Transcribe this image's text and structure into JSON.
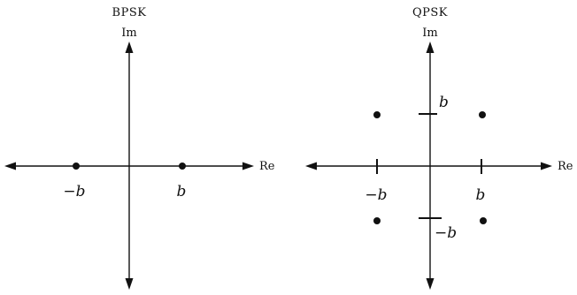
{
  "bpsk": {
    "title": "BPSK",
    "im_label": "Im",
    "re_label": "Re",
    "points": [
      {
        "re": -1,
        "im": 0
      },
      {
        "re": 1,
        "im": 0
      }
    ],
    "labels": {
      "neg_b": "−b",
      "pos_b": "b"
    }
  },
  "qpsk": {
    "title": "QPSK",
    "im_label": "Im",
    "re_label": "Re",
    "points": [
      {
        "re": -1,
        "im": 1
      },
      {
        "re": 1,
        "im": 1
      },
      {
        "re": -1,
        "im": -1
      },
      {
        "re": 1,
        "im": -1
      }
    ],
    "labels": {
      "neg_b_x": "−b",
      "pos_b_x": "b",
      "pos_b_y": "b",
      "neg_b_y": "−b"
    }
  }
}
